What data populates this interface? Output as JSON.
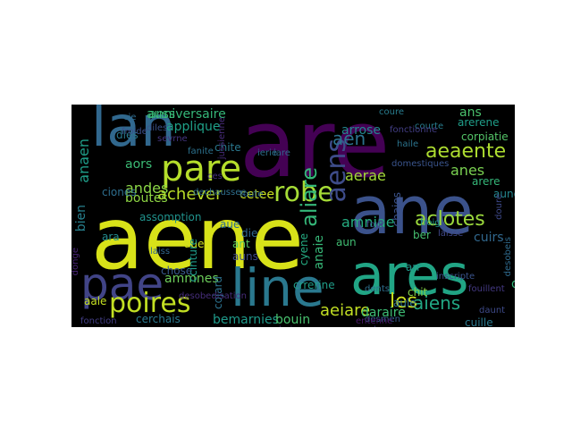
{
  "colors": {
    "background": "#000000",
    "page": "#ffffff",
    "palette": [
      "#440154",
      "#46327e",
      "#365c8d",
      "#277f8e",
      "#1fa187",
      "#4ac16d",
      "#a0da39",
      "#fde725"
    ]
  },
  "words": [
    {
      "text": "are",
      "color": "#440154"
    },
    {
      "text": "aene",
      "color": "#d8e219"
    },
    {
      "text": "ane",
      "color": "#3b528b"
    },
    {
      "text": "lan",
      "color": "#31688e"
    },
    {
      "text": "ares",
      "color": "#21a585"
    },
    {
      "text": "line",
      "color": "#2a788e"
    },
    {
      "text": "pae",
      "color": "#414487"
    },
    {
      "text": "pare",
      "color": "#b5de2b"
    },
    {
      "text": "poires",
      "color": "#c2df23"
    },
    {
      "text": "robe",
      "color": "#a5db36"
    },
    {
      "text": "aens",
      "color": "#3e4c8a"
    },
    {
      "text": "aliare",
      "color": "#35b779"
    },
    {
      "text": "aen",
      "color": "#2c728e"
    },
    {
      "text": "aeaente",
      "color": "#addc30"
    },
    {
      "text": "aclotes",
      "color": "#9bd93c"
    },
    {
      "text": "aiens",
      "color": "#22a884"
    },
    {
      "text": "aeiare",
      "color": "#c2df23"
    },
    {
      "text": "les",
      "color": "#cae11f"
    },
    {
      "text": "achever",
      "color": "#bade28"
    },
    {
      "text": "anniversaire",
      "color": "#35b779"
    },
    {
      "text": "andes",
      "color": "#8bd646"
    },
    {
      "text": "anaen",
      "color": "#1f9e89"
    },
    {
      "text": "amniae",
      "color": "#26ad81"
    },
    {
      "text": "aerae",
      "color": "#a2da37"
    },
    {
      "text": "arerene",
      "color": "#1f9e89"
    },
    {
      "text": "arere",
      "color": "#35b779"
    },
    {
      "text": "anes",
      "color": "#7ad151"
    },
    {
      "text": "ans",
      "color": "#4ac16d"
    },
    {
      "text": "ammnes",
      "color": "#6ccd5a"
    },
    {
      "text": "cetee",
      "color": "#c8e020"
    },
    {
      "text": "applique",
      "color": "#1fa188"
    },
    {
      "text": "arrose",
      "color": "#24868e"
    },
    {
      "text": "chite",
      "color": "#2a788e"
    },
    {
      "text": "aors",
      "color": "#3bbb75"
    },
    {
      "text": "boutes",
      "color": "#8fd744"
    },
    {
      "text": "bien",
      "color": "#27808e"
    },
    {
      "text": "cerchais",
      "color": "#2a788e"
    },
    {
      "text": "bemarnies",
      "color": "#1f9a8a"
    },
    {
      "text": "bouin",
      "color": "#48c16e"
    },
    {
      "text": "daraire",
      "color": "#3dbc74"
    },
    {
      "text": "anaie",
      "color": "#37b878"
    },
    {
      "text": "aue",
      "color": "#d2e21b"
    },
    {
      "text": "aun",
      "color": "#40bd72"
    },
    {
      "text": "ant",
      "color": "#58c765"
    },
    {
      "text": "die",
      "color": "#31688e"
    },
    {
      "text": "cyene",
      "color": "#25ab82"
    },
    {
      "text": "chit",
      "color": "#86d549"
    },
    {
      "text": "auss",
      "color": "#3aba76"
    },
    {
      "text": "dles",
      "color": "#2a788e"
    },
    {
      "text": "doe",
      "color": "#35b779"
    },
    {
      "text": "corpiatie",
      "color": "#54c568"
    },
    {
      "text": "courte",
      "color": "#287d8e"
    },
    {
      "text": "aune",
      "color": "#24878e"
    },
    {
      "text": "cuirs",
      "color": "#31688e"
    },
    {
      "text": "arr",
      "color": "#1f978b"
    },
    {
      "text": "chaies",
      "color": "#3b528b"
    },
    {
      "text": "crrerine",
      "color": "#1f9e89"
    },
    {
      "text": "cojard",
      "color": "#2c718e"
    },
    {
      "text": "chose",
      "color": "#38588c"
    },
    {
      "text": "aule",
      "color": "#2d708e"
    },
    {
      "text": "dents",
      "color": "#2e6f8e"
    },
    {
      "text": "desmen",
      "color": "#365c8d"
    },
    {
      "text": "cuille",
      "color": "#2a788e"
    },
    {
      "text": "assomption",
      "color": "#20928c"
    },
    {
      "text": "auns",
      "color": "#3e4a89"
    },
    {
      "text": "ccinture",
      "color": "#1e9b8a"
    },
    {
      "text": "ciones",
      "color": "#2e6e8e"
    },
    {
      "text": "ara",
      "color": "#238a8d"
    },
    {
      "text": "aale",
      "color": "#c5e021"
    },
    {
      "text": "coure",
      "color": "#287c8e"
    },
    {
      "text": "haile",
      "color": "#2b748e"
    },
    {
      "text": "four",
      "color": "#3f4889"
    },
    {
      "text": "froig",
      "color": "#1f998a"
    },
    {
      "text": "aue",
      "color": "#2e6e8e"
    },
    {
      "text": "ber",
      "color": "#46c06f"
    },
    {
      "text": "cie",
      "color": "#2f6c8e"
    },
    {
      "text": "iare",
      "color": "#31678e"
    },
    {
      "text": "fonction",
      "color": "#433e85"
    },
    {
      "text": "diles",
      "color": "#3b528b"
    },
    {
      "text": "fanite",
      "color": "#2c728e"
    },
    {
      "text": "ierie",
      "color": "#2d708e"
    },
    {
      "text": "domestiques",
      "color": "#3a548c"
    },
    {
      "text": "fonctionne",
      "color": "#433e85"
    },
    {
      "text": "desobeis",
      "color": "#2f6b8e"
    },
    {
      "text": "ces",
      "color": "#46307e"
    },
    {
      "text": "dechaussee",
      "color": "#2e6f8e"
    },
    {
      "text": "jussienne",
      "color": "#472c7a"
    },
    {
      "text": "froide",
      "color": "#3c4f8a"
    },
    {
      "text": "laisse",
      "color": "#3f4788"
    },
    {
      "text": "lame",
      "color": "#433d84"
    },
    {
      "text": "laiss",
      "color": "#31668e"
    },
    {
      "text": "doure",
      "color": "#3e4989"
    },
    {
      "text": "donge",
      "color": "#482475"
    },
    {
      "text": "inscripte",
      "color": "#3a538b"
    },
    {
      "text": "fouillent",
      "color": "#443983"
    },
    {
      "text": "entenne",
      "color": "#481769"
    },
    {
      "text": "desobedisation",
      "color": "#472e7c"
    },
    {
      "text": "sevrne",
      "color": "#453581"
    },
    {
      "text": "toute",
      "color": "#30698e"
    },
    {
      "text": "boireuse",
      "color": "#482878"
    },
    {
      "text": "daunt",
      "color": "#3e4a89"
    }
  ]
}
